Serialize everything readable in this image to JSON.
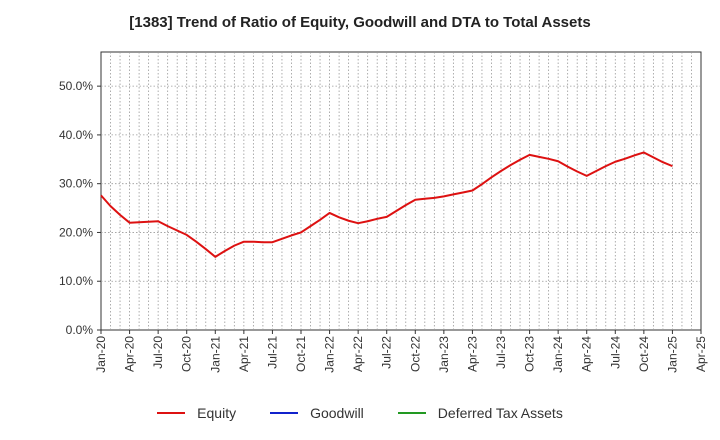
{
  "chart_data": {
    "type": "line",
    "title": "[1383]  Trend of Ratio of Equity, Goodwill and DTA to Total Assets",
    "xlabel": "",
    "ylabel": "",
    "ylim": [
      0,
      57
    ],
    "y_ticks": [
      {
        "value": 0,
        "label": "0.0%"
      },
      {
        "value": 10,
        "label": "10.0%"
      },
      {
        "value": 20,
        "label": "20.0%"
      },
      {
        "value": 30,
        "label": "30.0%"
      },
      {
        "value": 40,
        "label": "40.0%"
      },
      {
        "value": 50,
        "label": "50.0%"
      }
    ],
    "x_tick_labels": [
      "Jan-20",
      "Apr-20",
      "Jul-20",
      "Oct-20",
      "Jan-21",
      "Apr-21",
      "Jul-21",
      "Oct-21",
      "Jan-22",
      "Apr-22",
      "Jul-22",
      "Oct-22",
      "Jan-23",
      "Apr-23",
      "Jul-23",
      "Oct-23",
      "Jan-24",
      "Apr-24",
      "Jul-24",
      "Oct-24",
      "Jan-25",
      "Apr-25"
    ],
    "x_months": [
      "2020-01",
      "2020-02",
      "2020-03",
      "2020-04",
      "2020-05",
      "2020-06",
      "2020-07",
      "2020-08",
      "2020-09",
      "2020-10",
      "2020-11",
      "2020-12",
      "2021-01",
      "2021-02",
      "2021-03",
      "2021-04",
      "2021-05",
      "2021-06",
      "2021-07",
      "2021-08",
      "2021-09",
      "2021-10",
      "2021-11",
      "2021-12",
      "2022-01",
      "2022-02",
      "2022-03",
      "2022-04",
      "2022-05",
      "2022-06",
      "2022-07",
      "2022-08",
      "2022-09",
      "2022-10",
      "2022-11",
      "2022-12",
      "2023-01",
      "2023-02",
      "2023-03",
      "2023-04",
      "2023-05",
      "2023-06",
      "2023-07",
      "2023-08",
      "2023-09",
      "2023-10",
      "2023-11",
      "2023-12",
      "2024-01",
      "2024-02",
      "2024-03",
      "2024-04",
      "2024-05",
      "2024-06",
      "2024-07",
      "2024-08",
      "2024-09",
      "2024-10",
      "2024-11",
      "2024-12",
      "2025-01",
      "2025-02",
      "2025-03",
      "2025-04"
    ],
    "grid": true,
    "legend_position": "bottom-center",
    "series": [
      {
        "name": "Equity",
        "color": "#dd1111",
        "start_index": 0,
        "values": [
          27.6,
          25.4,
          23.6,
          22.0,
          22.1,
          22.2,
          22.3,
          21.3,
          20.4,
          19.5,
          18.1,
          16.6,
          15.0,
          16.2,
          17.3,
          18.1,
          18.1,
          18.0,
          18.0,
          18.7,
          19.4,
          20.0,
          21.3,
          22.6,
          24.0,
          23.1,
          22.4,
          21.9,
          22.3,
          22.8,
          23.2,
          24.4,
          25.6,
          26.7,
          26.9,
          27.1,
          27.4,
          27.8,
          28.2,
          28.6,
          29.9,
          31.3,
          32.6,
          33.8,
          34.9,
          35.9,
          35.5,
          35.1,
          34.6,
          33.5,
          32.5,
          31.6,
          32.6,
          33.6,
          34.5,
          35.1,
          35.8,
          36.4,
          35.4,
          34.4,
          33.6
        ]
      },
      {
        "name": "Goodwill",
        "color": "#1122cc",
        "values": []
      },
      {
        "name": "Deferred Tax Assets",
        "color": "#229922",
        "values": []
      }
    ]
  }
}
